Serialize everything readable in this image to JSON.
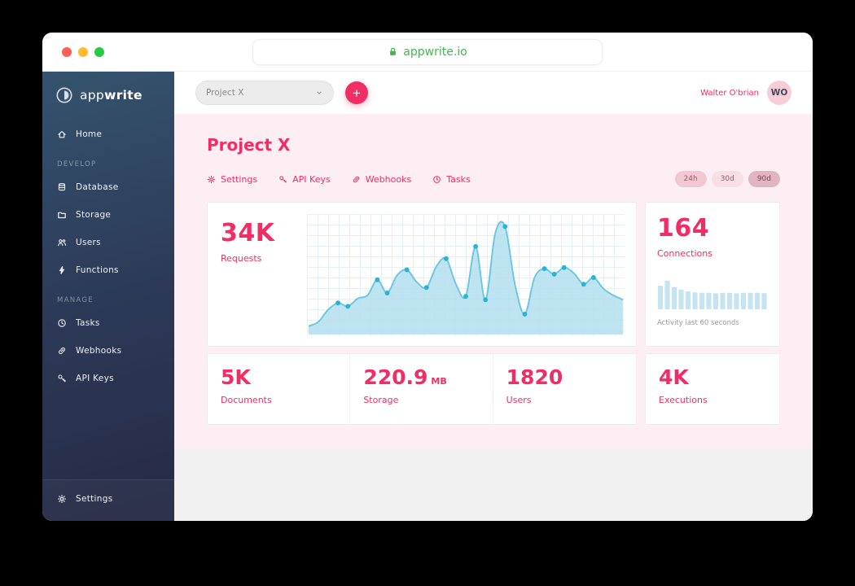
{
  "browser": {
    "url": "appwrite.io"
  },
  "sidebar": {
    "logo_light": "app",
    "logo_bold": "write",
    "home": {
      "label": "Home",
      "icon": "home-icon"
    },
    "develop_label": "DEVELOP",
    "develop_items": [
      {
        "label": "Database",
        "icon": "database-icon"
      },
      {
        "label": "Storage",
        "icon": "storage-icon"
      },
      {
        "label": "Users",
        "icon": "users-icon"
      },
      {
        "label": "Functions",
        "icon": "lightning-icon"
      }
    ],
    "manage_label": "MANAGE",
    "manage_items": [
      {
        "label": "Tasks",
        "icon": "clock-icon"
      },
      {
        "label": "Webhooks",
        "icon": "link-icon"
      },
      {
        "label": "API Keys",
        "icon": "key-icon"
      }
    ],
    "footer_items": [
      {
        "label": "Settings",
        "icon": "gear-icon"
      }
    ]
  },
  "topbar": {
    "project_select": "Project X",
    "user_name": "Walter O'brian",
    "avatar_initials": "WO"
  },
  "main": {
    "title": "Project X",
    "tabs": [
      {
        "label": "Settings",
        "icon": "gear-icon"
      },
      {
        "label": "API Keys",
        "icon": "key-icon"
      },
      {
        "label": "Webhooks",
        "icon": "link-icon"
      },
      {
        "label": "Tasks",
        "icon": "clock-icon"
      }
    ],
    "ranges": [
      {
        "label": "24h",
        "selected": false
      },
      {
        "label": "30d",
        "selected": false
      },
      {
        "label": "90d",
        "selected": true
      }
    ]
  },
  "cards": {
    "requests": {
      "value": "34K",
      "label": "Requests"
    },
    "connections": {
      "value": "164",
      "label": "Connections",
      "caption": "Activity last 60 seconds"
    },
    "documents": {
      "value": "5K",
      "label": "Documents"
    },
    "storage": {
      "value": "220.9",
      "unit": "MB",
      "label": "Storage"
    },
    "users": {
      "value": "1820",
      "label": "Users"
    },
    "executions": {
      "value": "4K",
      "label": "Executions"
    }
  },
  "colors": {
    "accent_pink": "#f02e65",
    "chart_line": "#6ec7de",
    "chart_fill": "#b7e0ef",
    "chart_dot": "#2ab3d7",
    "bar_color": "#c5e4f2"
  },
  "chart_data": [
    {
      "type": "area",
      "name": "requests",
      "title": "Requests",
      "value_label": "34K",
      "ylim": [
        0,
        100
      ],
      "grid": true,
      "line_color": "#6ec7de",
      "fill_color": "#b7e0ef",
      "dot_color": "#2ab3d7",
      "values": [
        6,
        10,
        21,
        27,
        24,
        31,
        34,
        48,
        36,
        52,
        57,
        46,
        41,
        60,
        67,
        44,
        33,
        78,
        30,
        90,
        96,
        44,
        17,
        50,
        58,
        53,
        59,
        54,
        44,
        50,
        40,
        34,
        30
      ]
    },
    {
      "type": "bar",
      "name": "connections",
      "title": "Connections",
      "value_label": "164",
      "caption": "Activity last 60 seconds",
      "ylim": [
        0,
        100
      ],
      "bar_color": "#c5e4f2",
      "values": [
        66,
        80,
        62,
        55,
        50,
        47,
        46,
        46,
        45,
        46,
        46,
        45,
        46,
        46,
        46,
        45
      ]
    }
  ]
}
